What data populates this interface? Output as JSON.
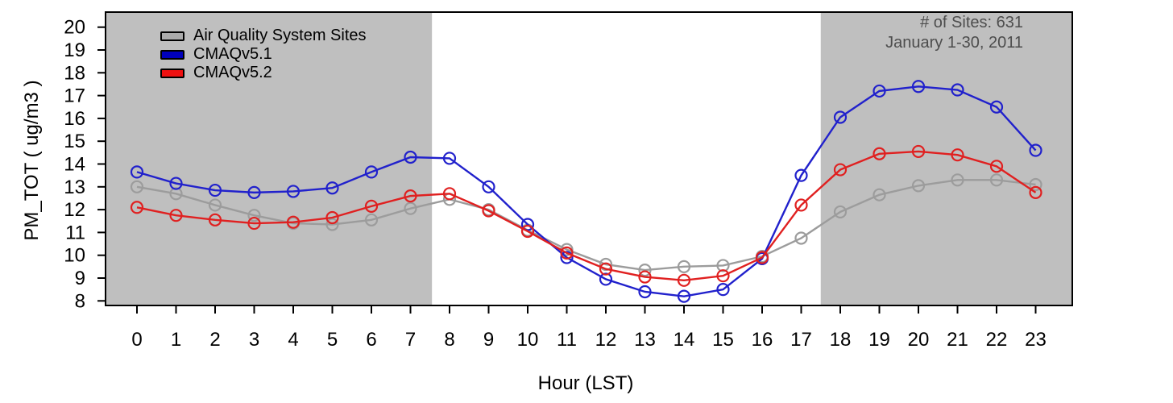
{
  "chart_data": {
    "type": "line",
    "title": "",
    "xlabel": "Hour (LST)",
    "ylabel": "PM_TOT ( ug/m3 )",
    "x": [
      0,
      1,
      2,
      3,
      4,
      5,
      6,
      7,
      8,
      9,
      10,
      11,
      12,
      13,
      14,
      15,
      16,
      17,
      18,
      19,
      20,
      21,
      22,
      23
    ],
    "xticks": [
      0,
      1,
      2,
      3,
      4,
      5,
      6,
      7,
      8,
      9,
      10,
      11,
      12,
      13,
      14,
      15,
      16,
      17,
      18,
      19,
      20,
      21,
      22,
      23
    ],
    "yticks": [
      8,
      9,
      10,
      11,
      12,
      13,
      14,
      15,
      16,
      17,
      18,
      19,
      20
    ],
    "xlim": [
      -0.8,
      23.94
    ],
    "ylim": [
      7.8,
      20.7
    ],
    "grid": false,
    "marker": "open-circle",
    "legend_position": "top-left",
    "shade_color": "#bfbfbf",
    "frame_color": "#000000",
    "shaded_hours": [
      [
        -0.8,
        7.55
      ],
      [
        17.5,
        23.94
      ]
    ],
    "series": [
      {
        "name": "Air Quality System Sites",
        "color": "#9c9c9c",
        "legend_fill": "#ababab",
        "values": [
          13.0,
          12.7,
          12.2,
          11.75,
          11.4,
          11.35,
          11.55,
          12.05,
          12.45,
          12.0,
          11.1,
          10.25,
          9.6,
          9.35,
          9.5,
          9.55,
          9.95,
          10.75,
          11.9,
          12.65,
          13.05,
          13.3,
          13.3,
          13.1
        ]
      },
      {
        "name": "CMAQv5.1",
        "color": "#2121cc",
        "legend_fill": "#0000bb",
        "values": [
          13.65,
          13.15,
          12.85,
          12.75,
          12.8,
          12.95,
          13.65,
          14.3,
          14.25,
          13.0,
          11.35,
          9.9,
          8.95,
          8.4,
          8.2,
          8.5,
          9.85,
          13.5,
          16.05,
          17.2,
          17.4,
          17.25,
          16.5,
          14.6
        ]
      },
      {
        "name": "CMAQv5.2",
        "color": "#e02020",
        "legend_fill": "#ee1111",
        "values": [
          12.1,
          11.75,
          11.55,
          11.4,
          11.45,
          11.65,
          12.15,
          12.6,
          12.7,
          11.95,
          11.05,
          10.1,
          9.4,
          9.05,
          8.9,
          9.1,
          9.9,
          12.2,
          13.75,
          14.45,
          14.55,
          14.4,
          13.9,
          12.75
        ]
      }
    ],
    "annotations": [
      "# of Sites: 631",
      "January 1-30, 2011"
    ],
    "annotation_color": "#4d4d4d"
  }
}
